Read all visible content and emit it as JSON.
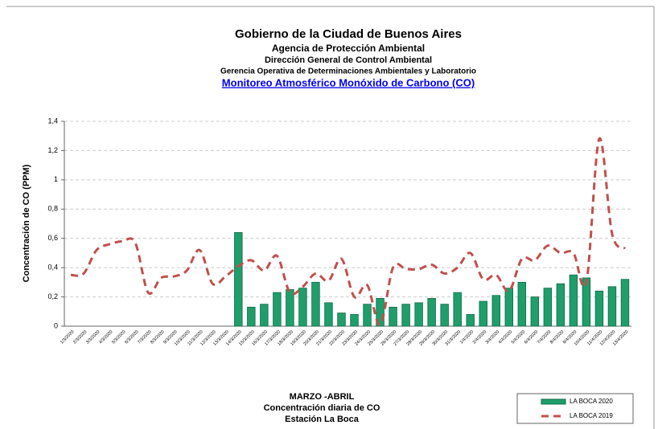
{
  "chart_data": {
    "type": "bar_line",
    "title": "Gobierno de la Ciudad de Buenos Aires",
    "subtitles": [
      "Agencia de Protección Ambiental",
      "Dirección General de Control Ambiental",
      "Gerencia Operativa de  Determinaciones Ambientales y Laboratorio"
    ],
    "link": "Monitoreo Atmosférico Monóxido de Carbono (CO)",
    "ylabel": "Concentración de CO (PPM)",
    "xlabel": [
      "MARZO -ABRIL",
      "Concentración diaria de CO",
      "Estación La Boca"
    ],
    "categories": [
      "1/3/2020",
      "2/3/2020",
      "3/3/2020",
      "4/3/2020",
      "5/3/2020",
      "6/3/2020",
      "7/3/2020",
      "8/3/2020",
      "9/3/2020",
      "10/3/2020",
      "11/3/2020",
      "12/3/2020",
      "13/3/2020",
      "14/3/2020",
      "15/3/2020",
      "16/3/2020",
      "17/3/2020",
      "18/3/2020",
      "19/3/2020",
      "20/3/2020",
      "21/3/2020",
      "22/3/2020",
      "23/3/2020",
      "24/3/2020",
      "25/3/2020",
      "26/3/2020",
      "27/3/2020",
      "28/3/2020",
      "29/3/2020",
      "30/3/2020",
      "31/3/2020",
      "1/4/2020",
      "2/4/2020",
      "3/4/2020",
      "4/4/2020",
      "5/4/2020",
      "6/4/2020",
      "7/4/2020",
      "8/4/2020",
      "9/4/2020",
      "10/4/2020",
      "11/4/2020",
      "12/4/2020",
      "13/4/2020"
    ],
    "series": [
      {
        "name": "LA BOCA 2020",
        "kind": "bar",
        "color": "#1f9e6c",
        "values": [
          null,
          null,
          null,
          null,
          null,
          null,
          null,
          null,
          null,
          null,
          null,
          null,
          null,
          0.64,
          0.13,
          0.15,
          0.23,
          0.25,
          0.26,
          0.3,
          0.16,
          0.09,
          0.08,
          0.15,
          0.19,
          0.13,
          0.15,
          0.16,
          0.19,
          0.15,
          0.23,
          0.08,
          0.17,
          0.21,
          0.26,
          0.3,
          0.2,
          0.26,
          0.29,
          0.35,
          0.33,
          0.24,
          0.27,
          0.32
        ]
      },
      {
        "name": "LA BOCA 2019",
        "kind": "line",
        "color": "#c0504d",
        "values": [
          0.35,
          0.36,
          0.52,
          0.56,
          0.58,
          0.57,
          0.23,
          0.33,
          0.34,
          0.38,
          0.52,
          0.29,
          0.34,
          0.41,
          0.45,
          0.38,
          0.48,
          0.23,
          0.27,
          0.36,
          0.31,
          0.46,
          0.2,
          0.28,
          0.01,
          0.4,
          0.39,
          0.39,
          0.42,
          0.36,
          0.4,
          0.5,
          0.32,
          0.35,
          0.24,
          0.46,
          0.45,
          0.55,
          0.5,
          0.5,
          0.3,
          1.28,
          0.63,
          0.53
        ]
      }
    ],
    "ylim": [
      0,
      1.4
    ],
    "yticks": [
      0,
      {
        "value": 0.2,
        "label": "0,2"
      },
      {
        "value": 0.4,
        "label": "0,4"
      },
      {
        "value": 0.6,
        "label": "0,6"
      },
      {
        "value": 0.8,
        "label": "0,8"
      },
      1,
      {
        "value": 1.2,
        "label": "1,2"
      },
      {
        "value": 1.4,
        "label": "1,4"
      }
    ],
    "grid": true,
    "legend": "bottom-right"
  }
}
